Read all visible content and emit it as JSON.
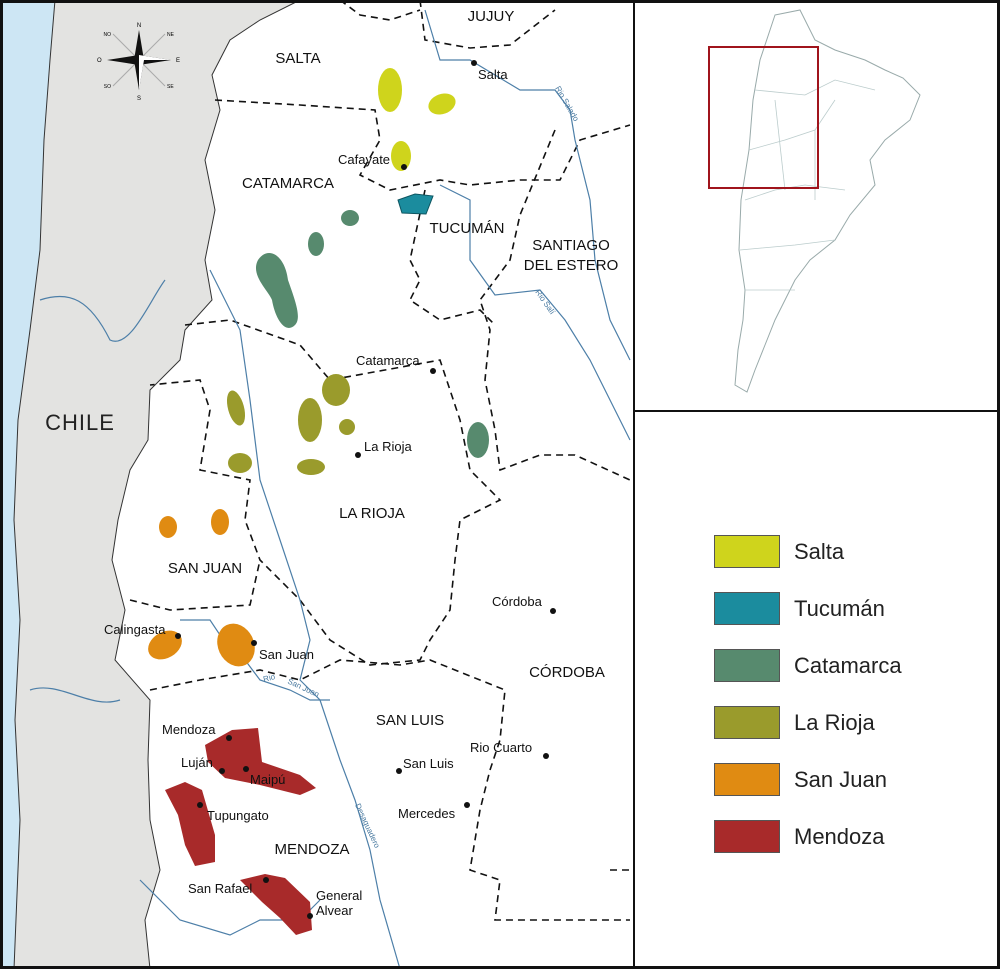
{
  "map": {
    "country_label": "CHILE",
    "provinces": {
      "salta": "SALTA",
      "jujuy": "JUJUY",
      "catamarca": "CATAMARCA",
      "tucuman": "TUCUMÁN",
      "santiago_1": "SANTIAGO",
      "santiago_2": "DEL ESTERO",
      "la_rioja": "LA RIOJA",
      "san_juan": "SAN JUAN",
      "cordoba": "CÓRDOBA",
      "san_luis": "SAN LUIS",
      "mendoza": "MENDOZA"
    },
    "cities": {
      "salta": "Salta",
      "cafayate": "Cafayate",
      "catamarca": "Catamarca",
      "la_rioja": "La Rioja",
      "cordoba": "Córdoba",
      "calingasta": "Calingasta",
      "san_juan": "San Juan",
      "mendoza": "Mendoza",
      "lujan": "Luján",
      "maipu": "Maipú",
      "tupungato": "Tupungato",
      "san_rafael": "San Rafael",
      "general_alvear_1": "General",
      "general_alvear_2": "Alvear",
      "san_luis": "San Luis",
      "rio_cuarto": "Rio Cuarto",
      "mercedes": "Mercedes"
    },
    "rivers": {
      "salado": "Rio Salado",
      "sali": "Rio Salí",
      "san_juan_1": "Rio",
      "san_juan_2": "San Juan",
      "desaguadero": "Desaguadero"
    },
    "compass": {
      "n": "N",
      "s": "S",
      "e": "E",
      "o": "O",
      "ne": "NE",
      "no": "NO",
      "se": "SE",
      "so": "SO"
    }
  },
  "colors": {
    "salta": "#cfd41c",
    "tucuman": "#1b8c9e",
    "catamarca": "#578a6e",
    "la_rioja": "#9a9b2c",
    "san_juan": "#e08b12",
    "mendoza": "#a82a2a",
    "chile": "#e3e3e1",
    "sea": "#cde6f4",
    "inset_box": "#a0141c"
  },
  "legend": [
    {
      "label": "Salta",
      "color": "#cfd41c"
    },
    {
      "label": "Tucumán",
      "color": "#1b8c9e"
    },
    {
      "label": "Catamarca",
      "color": "#578a6e"
    },
    {
      "label": "La Rioja",
      "color": "#9a9b2c"
    },
    {
      "label": "San Juan",
      "color": "#e08b12"
    },
    {
      "label": "Mendoza",
      "color": "#a82a2a"
    }
  ]
}
